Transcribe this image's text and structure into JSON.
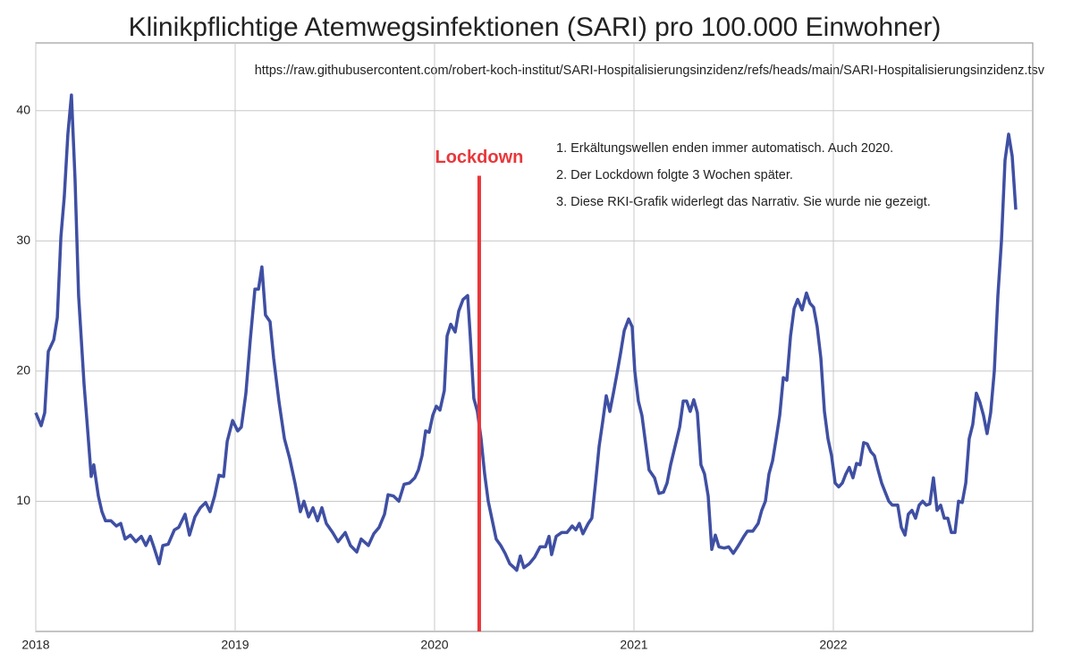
{
  "chart_data": {
    "type": "line",
    "title": "Klinikpflichtige Atemwegsinfektionen (SARI) pro 100.000 Einwohner)",
    "source": "https://raw.githubusercontent.com/robert-koch-institut/SARI-Hospitalisierungsinzidenz/refs/heads/main/SARI-Hospitalisierungsinzidenz.tsv",
    "notes": [
      "1. Erkältungswellen enden immer automatisch. Auch 2020.",
      "2. Der Lockdown folgte 3 Wochen später.",
      "3. Diese RKI-Grafik widerlegt das Narrativ. Sie wurde nie gezeigt."
    ],
    "lockdown": {
      "label": "Lockdown",
      "x": 2020.224,
      "ymax": 35,
      "color": "#e8373a"
    },
    "xlim": [
      2018,
      2023
    ],
    "xticks": [
      2018,
      2019,
      2020,
      2021,
      2022
    ],
    "ylim": [
      0,
      45
    ],
    "yticks": [
      10,
      20,
      30,
      40
    ],
    "grid": true,
    "series": [
      {
        "color": "#3f4fa3",
        "x": [
          2018.0,
          2018.027,
          2018.045,
          2018.063,
          2018.09,
          2018.108,
          2018.126,
          2018.143,
          2018.161,
          2018.179,
          2018.197,
          2018.215,
          2018.242,
          2018.26,
          2018.278,
          2018.291,
          2018.314,
          2018.332,
          2018.35,
          2018.377,
          2018.404,
          2018.426,
          2018.448,
          2018.475,
          2018.502,
          2018.529,
          2018.552,
          2018.574,
          2018.592,
          2018.619,
          2018.637,
          2018.664,
          2018.695,
          2018.717,
          2018.749,
          2018.771,
          2018.798,
          2018.825,
          2018.852,
          2018.874,
          2018.897,
          2018.919,
          2018.942,
          2018.96,
          2018.987,
          2019.013,
          2019.031,
          2019.054,
          2019.076,
          2019.099,
          2019.117,
          2019.134,
          2019.152,
          2019.175,
          2019.193,
          2019.22,
          2019.247,
          2019.273,
          2019.3,
          2019.327,
          2019.345,
          2019.368,
          2019.39,
          2019.413,
          2019.435,
          2019.457,
          2019.489,
          2019.516,
          2019.552,
          2019.578,
          2019.61,
          2019.632,
          2019.668,
          2019.695,
          2019.722,
          2019.749,
          2019.767,
          2019.794,
          2019.821,
          2019.847,
          2019.874,
          2019.901,
          2019.919,
          2019.937,
          2019.955,
          2019.973,
          2019.991,
          2020.009,
          2020.027,
          2020.049,
          2020.063,
          2020.081,
          2020.103,
          2020.121,
          2020.143,
          2020.166,
          2020.179,
          2020.197,
          2020.215,
          2020.233,
          2020.251,
          2020.269,
          2020.287,
          2020.309,
          2020.332,
          2020.354,
          2020.377,
          2020.399,
          2020.412,
          2020.43,
          2020.448,
          2020.475,
          2020.502,
          2020.529,
          2020.556,
          2020.574,
          2020.587,
          2020.61,
          2020.637,
          2020.664,
          2020.69,
          2020.708,
          2020.726,
          2020.744,
          2020.771,
          2020.789,
          2020.807,
          2020.825,
          2020.843,
          2020.861,
          2020.879,
          2020.897,
          2020.915,
          2020.933,
          2020.951,
          2020.973,
          2020.991,
          2021.004,
          2021.022,
          2021.04,
          2021.058,
          2021.076,
          2021.103,
          2021.125,
          2021.148,
          2021.166,
          2021.184,
          2021.206,
          2021.229,
          2021.247,
          2021.264,
          2021.282,
          2021.3,
          2021.318,
          2021.336,
          2021.354,
          2021.372,
          2021.39,
          2021.408,
          2021.426,
          2021.453,
          2021.475,
          2021.498,
          2021.524,
          2021.551,
          2021.569,
          2021.596,
          2021.623,
          2021.641,
          2021.659,
          2021.677,
          2021.695,
          2021.713,
          2021.731,
          2021.749,
          2021.767,
          2021.785,
          2021.803,
          2021.821,
          2021.843,
          2021.865,
          2021.883,
          2021.901,
          2021.919,
          2021.937,
          2021.955,
          2021.973,
          2021.991,
          2022.009,
          2022.027,
          2022.045,
          2022.063,
          2022.08,
          2022.098,
          2022.116,
          2022.134,
          2022.152,
          2022.17,
          2022.188,
          2022.206,
          2022.224,
          2022.242,
          2022.26,
          2022.278,
          2022.296,
          2022.323,
          2022.341,
          2022.359,
          2022.376,
          2022.394,
          2022.412,
          2022.43,
          2022.448,
          2022.466,
          2022.484,
          2022.502,
          2022.52,
          2022.538,
          2022.556,
          2022.574,
          2022.592,
          2022.61,
          2022.628,
          2022.646,
          2022.664,
          2022.681,
          2022.699,
          2022.717,
          2022.735,
          2022.753,
          2022.771,
          2022.789,
          2022.807,
          2022.825,
          2022.843,
          2022.861,
          2022.879,
          2022.897,
          2022.915
        ],
        "values": [
          16.8,
          15.8,
          16.8,
          21.5,
          22.4,
          24.1,
          30.3,
          33.4,
          38.2,
          41.2,
          34.8,
          25.8,
          19.0,
          15.5,
          11.9,
          12.8,
          10.4,
          9.2,
          8.5,
          8.5,
          8.1,
          8.3,
          7.1,
          7.4,
          6.9,
          7.3,
          6.6,
          7.3,
          6.5,
          5.2,
          6.6,
          6.7,
          7.8,
          8.0,
          9.0,
          7.4,
          8.8,
          9.5,
          9.9,
          9.2,
          10.4,
          12.0,
          11.9,
          14.6,
          16.2,
          15.4,
          15.7,
          18.3,
          22.4,
          26.3,
          26.3,
          28.0,
          24.3,
          23.8,
          21.0,
          17.6,
          14.8,
          13.3,
          11.4,
          9.2,
          10.0,
          8.8,
          9.5,
          8.5,
          9.5,
          8.3,
          7.6,
          6.9,
          7.6,
          6.6,
          6.1,
          7.1,
          6.6,
          7.5,
          8.0,
          9.0,
          10.5,
          10.4,
          10.0,
          11.3,
          11.4,
          11.8,
          12.4,
          13.5,
          15.4,
          15.3,
          16.6,
          17.3,
          17.0,
          18.5,
          22.7,
          23.6,
          23.0,
          24.6,
          25.5,
          25.8,
          22.7,
          17.9,
          16.9,
          14.8,
          12.1,
          10.0,
          8.7,
          7.1,
          6.6,
          6.0,
          5.2,
          4.9,
          4.7,
          5.8,
          4.9,
          5.2,
          5.7,
          6.5,
          6.5,
          7.3,
          5.9,
          7.3,
          7.6,
          7.6,
          8.1,
          7.8,
          8.3,
          7.5,
          8.3,
          8.7,
          11.4,
          14.2,
          16.1,
          18.1,
          16.9,
          18.3,
          19.8,
          21.4,
          23.1,
          24.0,
          23.4,
          20.0,
          17.7,
          16.6,
          14.5,
          12.4,
          11.8,
          10.6,
          10.7,
          11.4,
          12.8,
          14.2,
          15.7,
          17.7,
          17.7,
          16.9,
          17.8,
          16.8,
          12.8,
          12.1,
          10.4,
          6.3,
          7.4,
          6.5,
          6.4,
          6.5,
          6.0,
          6.6,
          7.3,
          7.7,
          7.7,
          8.3,
          9.3,
          10.0,
          12.1,
          13.1,
          14.8,
          16.6,
          19.5,
          19.3,
          22.7,
          24.8,
          25.5,
          24.7,
          26.0,
          25.2,
          24.9,
          23.4,
          21.0,
          16.9,
          14.8,
          13.5,
          11.4,
          11.1,
          11.4,
          12.1,
          12.6,
          11.8,
          12.9,
          12.8,
          14.5,
          14.4,
          13.8,
          13.5,
          12.4,
          11.4,
          10.7,
          10.0,
          9.7,
          9.7,
          8.0,
          7.4,
          9.0,
          9.3,
          8.7,
          9.7,
          10.0,
          9.7,
          9.8,
          11.8,
          9.3,
          9.7,
          8.7,
          8.7,
          7.6,
          7.6,
          10.0,
          9.9,
          11.4,
          14.8,
          15.9,
          18.3,
          17.6,
          16.6,
          15.2,
          16.8,
          20.0,
          25.8,
          30.0,
          36.2,
          38.2,
          36.5,
          32.4
        ]
      }
    ]
  }
}
